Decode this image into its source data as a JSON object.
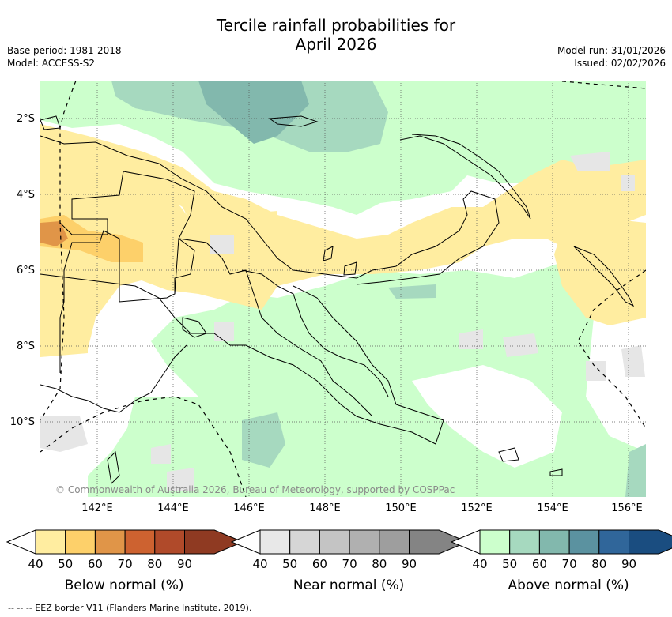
{
  "title_line1": "Tercile rainfall probabilities for",
  "title_line2": "April 2026",
  "meta_left": {
    "base_period": "Base period: 1981-2018",
    "model": "Model: ACCESS-S2"
  },
  "meta_right": {
    "model_run": "Model run: 31/01/2026",
    "issued": "Issued: 02/02/2026"
  },
  "map": {
    "lat_labels": [
      "2°S",
      "4°S",
      "6°S",
      "8°S",
      "10°S"
    ],
    "lon_labels": [
      "142°E",
      "144°E",
      "146°E",
      "148°E",
      "150°E",
      "152°E",
      "154°E",
      "156°E"
    ],
    "copyright": "© Commonwealth of Australia 2026, Bureau of Meteorology, supported by COSPPac"
  },
  "colorbars": [
    {
      "label": "Below normal (%)",
      "ticks": [
        "40",
        "50",
        "60",
        "70",
        "80",
        "90"
      ],
      "colors": [
        "#ffeda0",
        "#fdd06a",
        "#e09548",
        "#cd6230",
        "#b04a2a",
        "#8f3a22"
      ]
    },
    {
      "label": "Near normal (%)",
      "ticks": [
        "40",
        "50",
        "60",
        "70",
        "80",
        "90"
      ],
      "colors": [
        "#e8e8e8",
        "#d6d6d6",
        "#c4c4c4",
        "#b0b0b0",
        "#9e9e9e",
        "#848484"
      ]
    },
    {
      "label": "Above normal (%)",
      "ticks": [
        "40",
        "50",
        "60",
        "70",
        "80",
        "90"
      ],
      "colors": [
        "#ccffcc",
        "#a6d9bf",
        "#82b8ad",
        "#5b92a0",
        "#30669a",
        "#1a4d80"
      ]
    }
  ],
  "footnote": "--  --  -- EEZ border V11 (Flanders Marine Institute, 2019)."
}
